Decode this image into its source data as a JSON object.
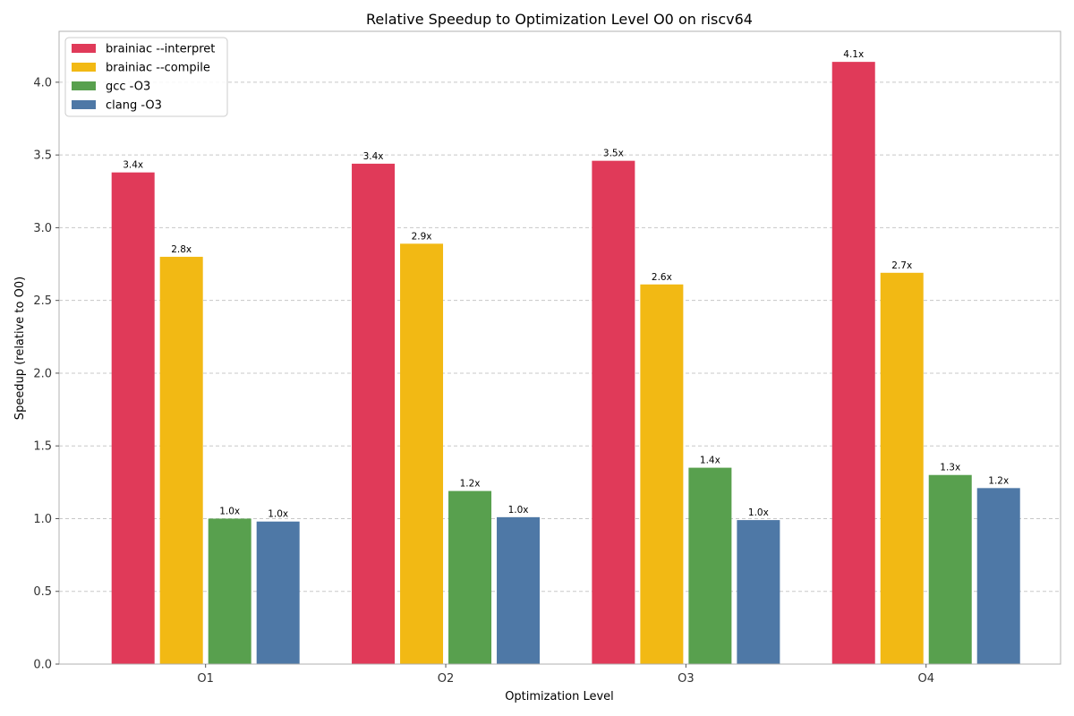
{
  "chart_data": {
    "type": "bar",
    "title": "Relative Speedup to Optimization Level O0 on riscv64",
    "xlabel": "Optimization Level",
    "ylabel": "Speedup (relative to O0)",
    "categories": [
      "O1",
      "O2",
      "O3",
      "O4"
    ],
    "ylim": [
      0,
      4.35
    ],
    "yticks": [
      "0.0",
      "0.5",
      "1.0",
      "1.5",
      "2.0",
      "2.5",
      "3.0",
      "3.5",
      "4.0"
    ],
    "grid": "horizontal-dashed",
    "legend_position": "top-left",
    "series": [
      {
        "name": "brainiac --interpret",
        "color": "#e03a59",
        "values": [
          3.38,
          3.44,
          3.46,
          4.14
        ],
        "labels": [
          "3.4x",
          "3.4x",
          "3.5x",
          "4.1x"
        ]
      },
      {
        "name": "brainiac --compile",
        "color": "#f2b914",
        "values": [
          2.8,
          2.89,
          2.61,
          2.69
        ],
        "labels": [
          "2.8x",
          "2.9x",
          "2.6x",
          "2.7x"
        ]
      },
      {
        "name": "gcc -O3",
        "color": "#58a04e",
        "values": [
          1.0,
          1.19,
          1.35,
          1.3
        ],
        "labels": [
          "1.0x",
          "1.2x",
          "1.4x",
          "1.3x"
        ]
      },
      {
        "name": "clang -O3",
        "color": "#4e78a6",
        "values": [
          0.98,
          1.01,
          0.99,
          1.21
        ],
        "labels": [
          "1.0x",
          "1.0x",
          "1.0x",
          "1.2x"
        ]
      }
    ]
  }
}
